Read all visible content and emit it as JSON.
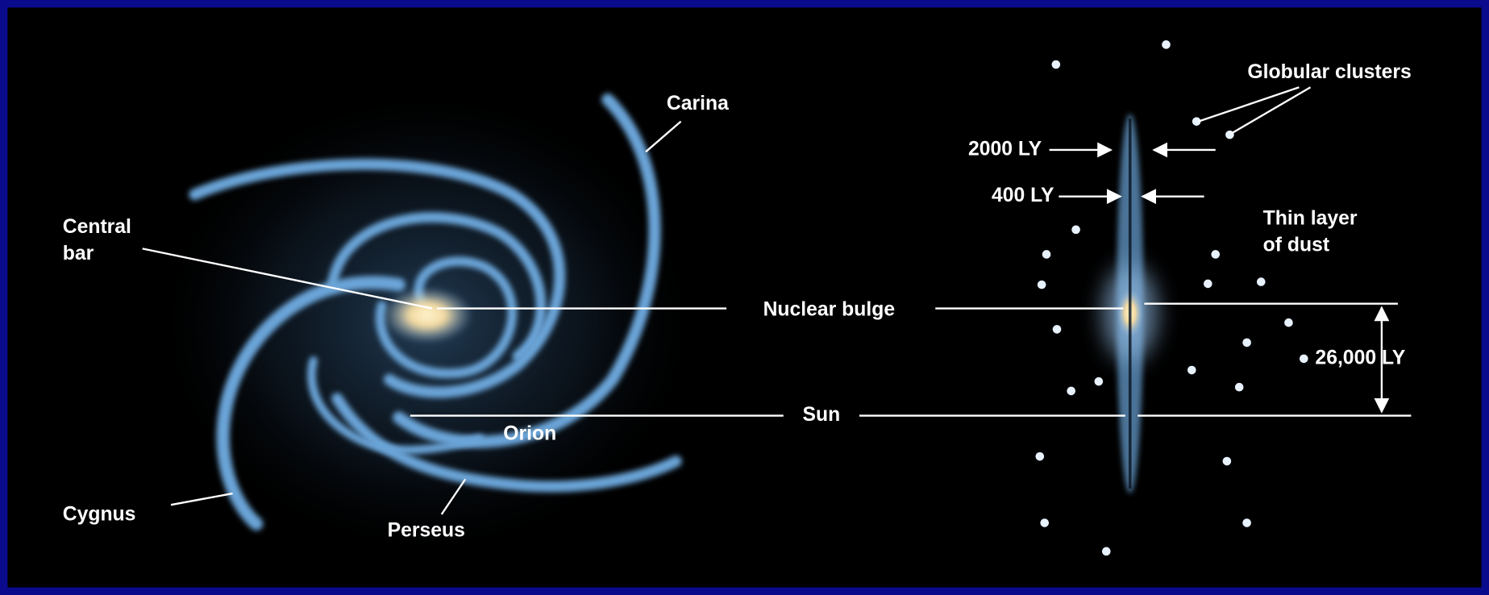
{
  "labels": {
    "carina": "Carina",
    "central_bar": [
      "Central",
      "bar"
    ],
    "nuclear_bulge": "Nuclear bulge",
    "sun": "Sun",
    "orion": "Orion",
    "cygnus": "Cygnus",
    "perseus": "Perseus",
    "globular_clusters": "Globular clusters",
    "disk_thickness": "2000 LY",
    "dust_thickness": "400 LY",
    "thin_layer_of_dust": [
      "Thin layer",
      "of dust"
    ],
    "sun_distance": "26,000 LY"
  }
}
